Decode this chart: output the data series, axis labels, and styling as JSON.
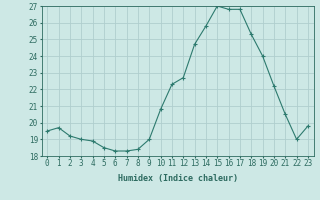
{
  "x": [
    0,
    1,
    2,
    3,
    4,
    5,
    6,
    7,
    8,
    9,
    10,
    11,
    12,
    13,
    14,
    15,
    16,
    17,
    18,
    19,
    20,
    21,
    22,
    23
  ],
  "y": [
    19.5,
    19.7,
    19.2,
    19.0,
    18.9,
    18.5,
    18.3,
    18.3,
    18.4,
    19.0,
    20.8,
    22.3,
    22.7,
    24.7,
    25.8,
    27.0,
    26.8,
    26.8,
    25.3,
    24.0,
    22.2,
    20.5,
    19.0,
    19.8
  ],
  "line_color": "#2d7a6e",
  "marker": "+",
  "marker_size": 3,
  "bg_color": "#cde8e5",
  "grid_color": "#b0cece",
  "xlabel": "Humidex (Indice chaleur)",
  "ylim": [
    18,
    27
  ],
  "yticks": [
    18,
    19,
    20,
    21,
    22,
    23,
    24,
    25,
    26,
    27
  ],
  "xticks": [
    0,
    1,
    2,
    3,
    4,
    5,
    6,
    7,
    8,
    9,
    10,
    11,
    12,
    13,
    14,
    15,
    16,
    17,
    18,
    19,
    20,
    21,
    22,
    23
  ],
  "tick_color": "#2d6b60",
  "label_fontsize": 6,
  "tick_fontsize": 5.5
}
